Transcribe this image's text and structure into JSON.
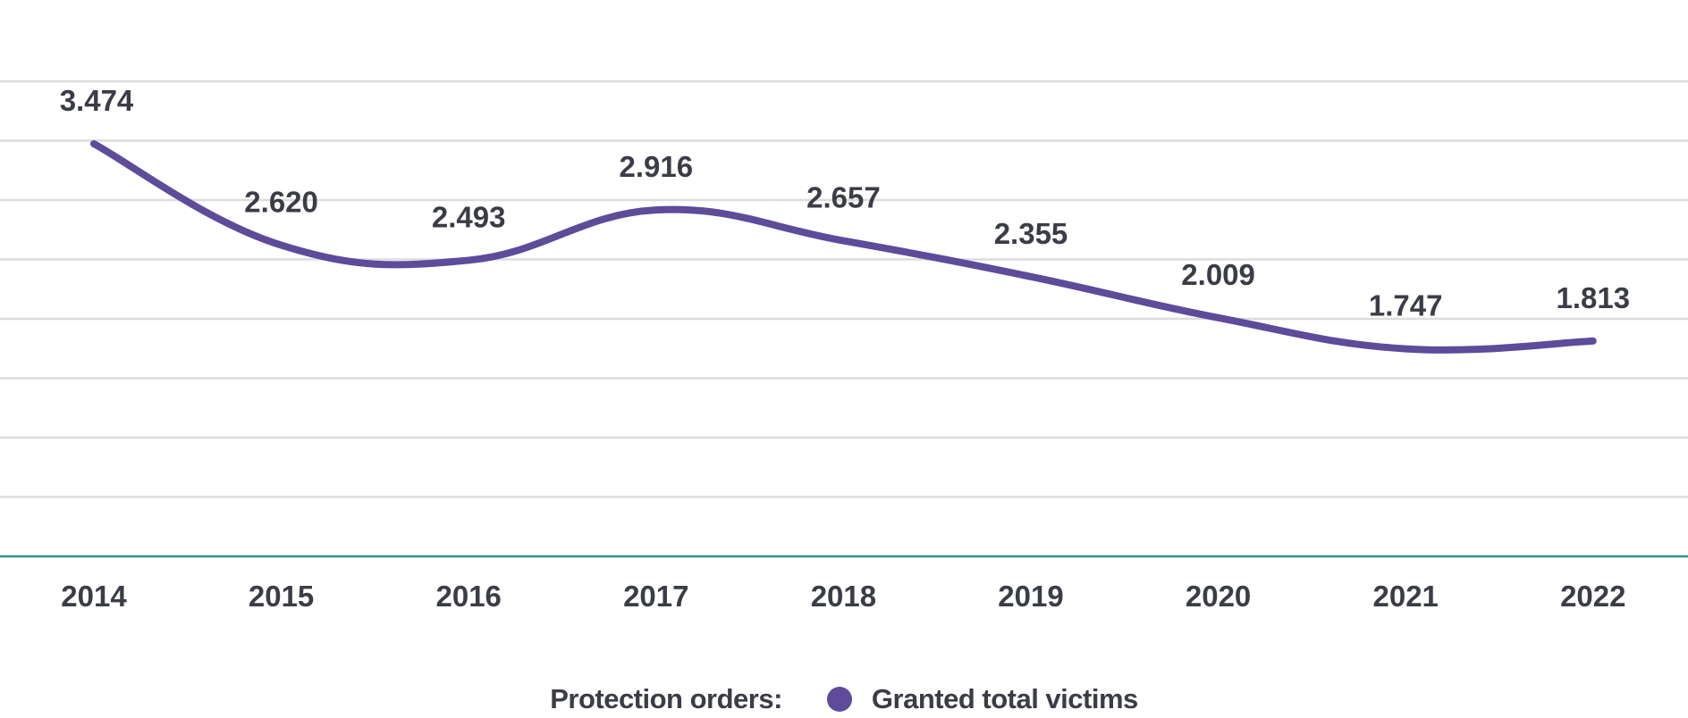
{
  "chart_data": {
    "type": "line",
    "title": "",
    "xlabel": "",
    "ylabel": "",
    "categories": [
      "2014",
      "2015",
      "2016",
      "2017",
      "2018",
      "2019",
      "2020",
      "2021",
      "2022"
    ],
    "series": [
      {
        "name": "Granted total victims",
        "values": [
          3.474,
          2.62,
          2.493,
          2.916,
          2.657,
          2.355,
          2.009,
          1.747,
          1.813
        ],
        "labels": [
          "3.474",
          "2.620",
          "2.493",
          "2.916",
          "2.657",
          "2.355",
          "2.009",
          "1.747",
          "1.813"
        ],
        "color": "#5e4b9a"
      }
    ],
    "ylim": [
      0,
      4.0
    ],
    "gridline_step": 0.5,
    "grid": true,
    "legend_position": "bottom-center"
  },
  "legend": {
    "title": "Protection orders:",
    "items": [
      {
        "label": "Granted total victims",
        "color": "#5e4b9a"
      }
    ]
  },
  "colors": {
    "grid": "#dcdcdc",
    "baseline": "#2a9488",
    "text": "#3a3d45"
  }
}
